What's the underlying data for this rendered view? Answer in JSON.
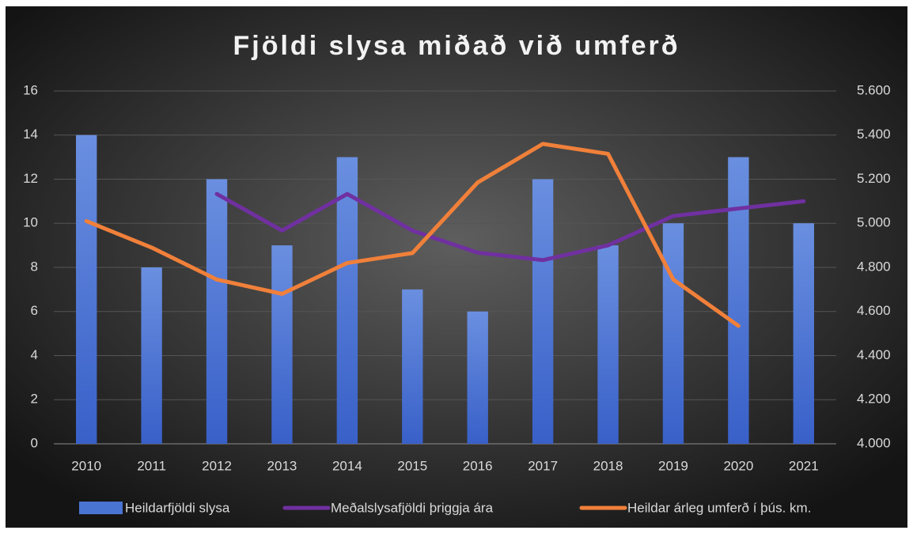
{
  "chart_data": {
    "type": "bar_line",
    "title": "Fjöldi slysa miðað við umferð",
    "categories": [
      "2010",
      "2011",
      "2012",
      "2013",
      "2014",
      "2015",
      "2016",
      "2017",
      "2018",
      "2019",
      "2020",
      "2021"
    ],
    "series": [
      {
        "name": "Heildarfjöldi slysa",
        "type": "bar",
        "color": "#4a74d4",
        "values": [
          14,
          8,
          12,
          9,
          13,
          7,
          6,
          12,
          9,
          10,
          13,
          10
        ]
      },
      {
        "name": "Meðalslysafjöldi þriggja ára",
        "type": "line",
        "color": "#7030a0",
        "values": [
          null,
          null,
          11.33,
          9.67,
          11.33,
          9.67,
          8.67,
          8.33,
          9,
          10.33,
          10.67,
          11
        ]
      },
      {
        "name": "Heildar árleg umferð í þús. km.",
        "type": "line",
        "axis": "y2",
        "color": "#f0803a",
        "values": [
          5010,
          4890,
          4745,
          4680,
          4820,
          4865,
          5185,
          5360,
          5315,
          4745,
          4535,
          null
        ]
      }
    ],
    "ylim": [
      0,
      16
    ],
    "yticks": [
      0,
      2,
      4,
      6,
      8,
      10,
      12,
      14,
      16
    ],
    "y2lim": [
      4000,
      5600
    ],
    "y2ticks": [
      {
        "value": 4000,
        "label": "4.000"
      },
      {
        "value": 4200,
        "label": "4.200"
      },
      {
        "value": 4400,
        "label": "4.400"
      },
      {
        "value": 4600,
        "label": "4.600"
      },
      {
        "value": 4800,
        "label": "4.800"
      },
      {
        "value": 5000,
        "label": "5.000"
      },
      {
        "value": 5200,
        "label": "5.200"
      },
      {
        "value": 5400,
        "label": "5.400"
      },
      {
        "value": 5600,
        "label": "5.600"
      }
    ],
    "grid": true,
    "legend": "bottom"
  }
}
